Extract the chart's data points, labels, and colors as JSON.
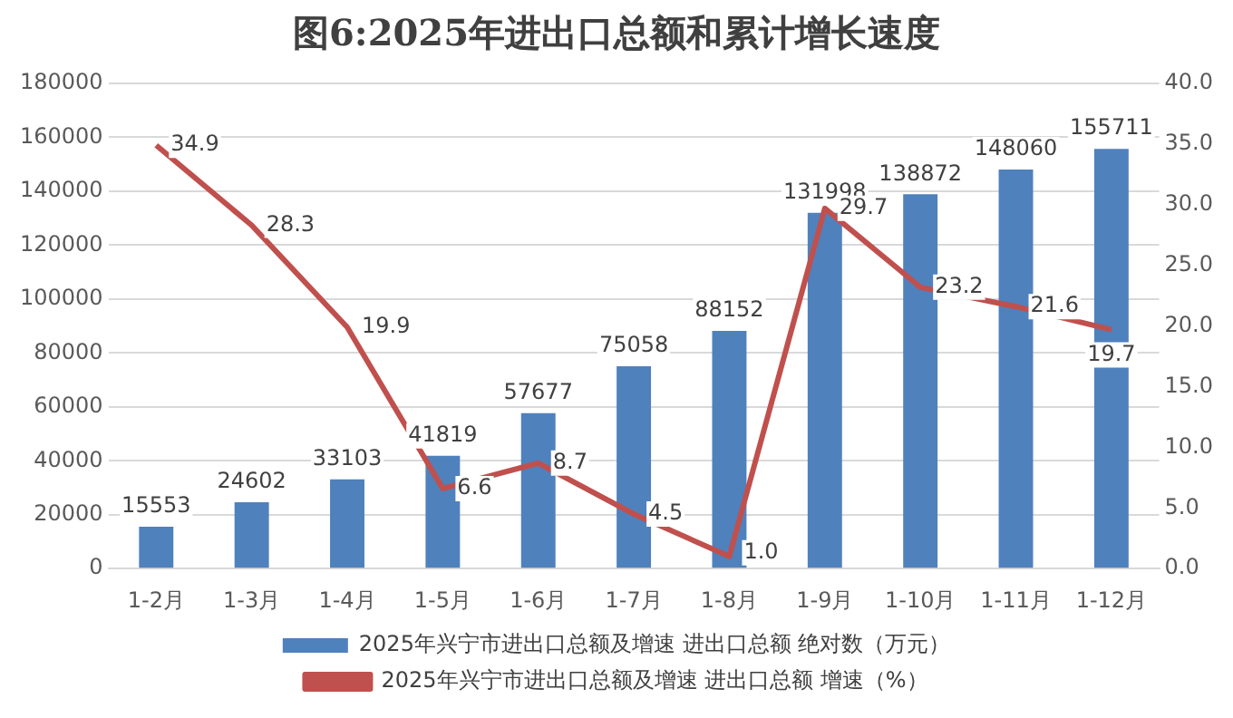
{
  "chart_data": {
    "type": "bar",
    "title": "图6:2025年进出口总额和累计增长速度",
    "categories": [
      "1-2月",
      "1-3月",
      "1-4月",
      "1-5月",
      "1-6月",
      "1-7月",
      "1-8月",
      "1-9月",
      "1-10月",
      "1-11月",
      "1-12月"
    ],
    "series": [
      {
        "name": "2025年兴宁市进出口总额及增速 进出口总额 绝对数（万元）",
        "color": "#4f81bd",
        "values": [
          15553,
          24602,
          33103,
          41819,
          57677,
          75058,
          88152,
          131998,
          138872,
          148060,
          155711
        ]
      },
      {
        "name": "2025年兴宁市进出口总额及增速 进出口总额 增速（%）",
        "type": "line",
        "axis": "y2",
        "color": "#c0504d",
        "values": [
          34.9,
          28.3,
          19.9,
          6.6,
          8.7,
          4.5,
          1.0,
          29.7,
          23.2,
          21.6,
          19.7
        ],
        "value_labels": [
          "34.9",
          "28.3",
          "19.9",
          "6.6",
          "8.7",
          "4.5",
          "1.0",
          "29.7",
          "23.2",
          "21.6",
          "19.7"
        ]
      }
    ],
    "ylim": [
      0,
      180000
    ],
    "yticks": [
      0,
      20000,
      40000,
      60000,
      80000,
      100000,
      120000,
      140000,
      160000,
      180000
    ],
    "y2lim": [
      0,
      40
    ],
    "y2ticks": [
      {
        "value": 0,
        "label": "0.0"
      },
      {
        "value": 5,
        "label": "5.0"
      },
      {
        "value": 10,
        "label": "10.0"
      },
      {
        "value": 15,
        "label": "15.0"
      },
      {
        "value": 20,
        "label": "20.0"
      },
      {
        "value": 25,
        "label": "25.0"
      },
      {
        "value": 30,
        "label": "30.0"
      },
      {
        "value": 35,
        "label": "35.0"
      },
      {
        "value": 40,
        "label": "40.0"
      }
    ],
    "grid": "y",
    "legend": "bottom",
    "marker": "none",
    "line_style": "solid",
    "data_labels": true
  }
}
